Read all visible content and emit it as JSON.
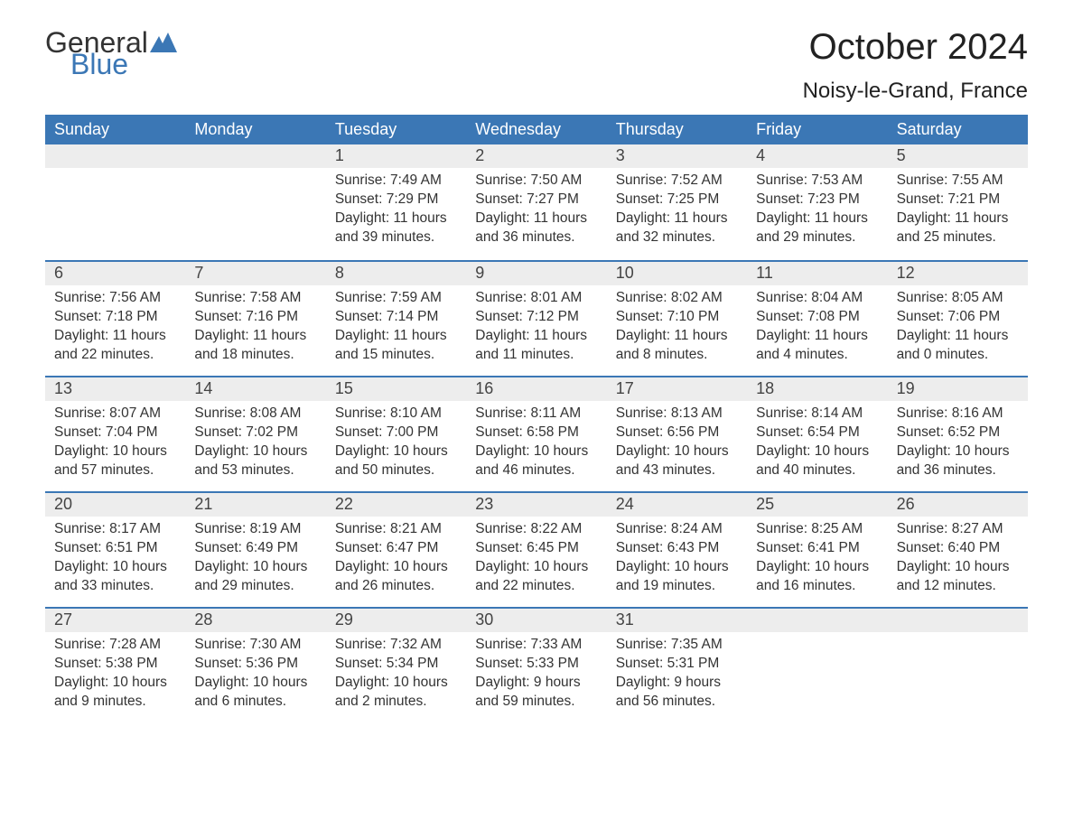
{
  "brand": {
    "general": "General",
    "blue": "Blue"
  },
  "colors": {
    "header_bg": "#3b77b5",
    "header_text": "#ffffff",
    "daynum_bg": "#ededed",
    "text": "#333333",
    "accent": "#3b77b5",
    "page_bg": "#ffffff"
  },
  "title": "October 2024",
  "location": "Noisy-le-Grand, France",
  "weekdays": [
    "Sunday",
    "Monday",
    "Tuesday",
    "Wednesday",
    "Thursday",
    "Friday",
    "Saturday"
  ],
  "labels": {
    "sunrise_prefix": "Sunrise: ",
    "sunset_prefix": "Sunset: ",
    "daylight_prefix": "Daylight: "
  },
  "weeks": [
    [
      {
        "blank": true
      },
      {
        "blank": true
      },
      {
        "day": "1",
        "sunrise": "7:49 AM",
        "sunset": "7:29 PM",
        "daylight": "11 hours and 39 minutes."
      },
      {
        "day": "2",
        "sunrise": "7:50 AM",
        "sunset": "7:27 PM",
        "daylight": "11 hours and 36 minutes."
      },
      {
        "day": "3",
        "sunrise": "7:52 AM",
        "sunset": "7:25 PM",
        "daylight": "11 hours and 32 minutes."
      },
      {
        "day": "4",
        "sunrise": "7:53 AM",
        "sunset": "7:23 PM",
        "daylight": "11 hours and 29 minutes."
      },
      {
        "day": "5",
        "sunrise": "7:55 AM",
        "sunset": "7:21 PM",
        "daylight": "11 hours and 25 minutes."
      }
    ],
    [
      {
        "day": "6",
        "sunrise": "7:56 AM",
        "sunset": "7:18 PM",
        "daylight": "11 hours and 22 minutes."
      },
      {
        "day": "7",
        "sunrise": "7:58 AM",
        "sunset": "7:16 PM",
        "daylight": "11 hours and 18 minutes."
      },
      {
        "day": "8",
        "sunrise": "7:59 AM",
        "sunset": "7:14 PM",
        "daylight": "11 hours and 15 minutes."
      },
      {
        "day": "9",
        "sunrise": "8:01 AM",
        "sunset": "7:12 PM",
        "daylight": "11 hours and 11 minutes."
      },
      {
        "day": "10",
        "sunrise": "8:02 AM",
        "sunset": "7:10 PM",
        "daylight": "11 hours and 8 minutes."
      },
      {
        "day": "11",
        "sunrise": "8:04 AM",
        "sunset": "7:08 PM",
        "daylight": "11 hours and 4 minutes."
      },
      {
        "day": "12",
        "sunrise": "8:05 AM",
        "sunset": "7:06 PM",
        "daylight": "11 hours and 0 minutes."
      }
    ],
    [
      {
        "day": "13",
        "sunrise": "8:07 AM",
        "sunset": "7:04 PM",
        "daylight": "10 hours and 57 minutes."
      },
      {
        "day": "14",
        "sunrise": "8:08 AM",
        "sunset": "7:02 PM",
        "daylight": "10 hours and 53 minutes."
      },
      {
        "day": "15",
        "sunrise": "8:10 AM",
        "sunset": "7:00 PM",
        "daylight": "10 hours and 50 minutes."
      },
      {
        "day": "16",
        "sunrise": "8:11 AM",
        "sunset": "6:58 PM",
        "daylight": "10 hours and 46 minutes."
      },
      {
        "day": "17",
        "sunrise": "8:13 AM",
        "sunset": "6:56 PM",
        "daylight": "10 hours and 43 minutes."
      },
      {
        "day": "18",
        "sunrise": "8:14 AM",
        "sunset": "6:54 PM",
        "daylight": "10 hours and 40 minutes."
      },
      {
        "day": "19",
        "sunrise": "8:16 AM",
        "sunset": "6:52 PM",
        "daylight": "10 hours and 36 minutes."
      }
    ],
    [
      {
        "day": "20",
        "sunrise": "8:17 AM",
        "sunset": "6:51 PM",
        "daylight": "10 hours and 33 minutes."
      },
      {
        "day": "21",
        "sunrise": "8:19 AM",
        "sunset": "6:49 PM",
        "daylight": "10 hours and 29 minutes."
      },
      {
        "day": "22",
        "sunrise": "8:21 AM",
        "sunset": "6:47 PM",
        "daylight": "10 hours and 26 minutes."
      },
      {
        "day": "23",
        "sunrise": "8:22 AM",
        "sunset": "6:45 PM",
        "daylight": "10 hours and 22 minutes."
      },
      {
        "day": "24",
        "sunrise": "8:24 AM",
        "sunset": "6:43 PM",
        "daylight": "10 hours and 19 minutes."
      },
      {
        "day": "25",
        "sunrise": "8:25 AM",
        "sunset": "6:41 PM",
        "daylight": "10 hours and 16 minutes."
      },
      {
        "day": "26",
        "sunrise": "8:27 AM",
        "sunset": "6:40 PM",
        "daylight": "10 hours and 12 minutes."
      }
    ],
    [
      {
        "day": "27",
        "sunrise": "7:28 AM",
        "sunset": "5:38 PM",
        "daylight": "10 hours and 9 minutes."
      },
      {
        "day": "28",
        "sunrise": "7:30 AM",
        "sunset": "5:36 PM",
        "daylight": "10 hours and 6 minutes."
      },
      {
        "day": "29",
        "sunrise": "7:32 AM",
        "sunset": "5:34 PM",
        "daylight": "10 hours and 2 minutes."
      },
      {
        "day": "30",
        "sunrise": "7:33 AM",
        "sunset": "5:33 PM",
        "daylight": "9 hours and 59 minutes."
      },
      {
        "day": "31",
        "sunrise": "7:35 AM",
        "sunset": "5:31 PM",
        "daylight": "9 hours and 56 minutes."
      },
      {
        "blank": true
      },
      {
        "blank": true
      }
    ]
  ]
}
